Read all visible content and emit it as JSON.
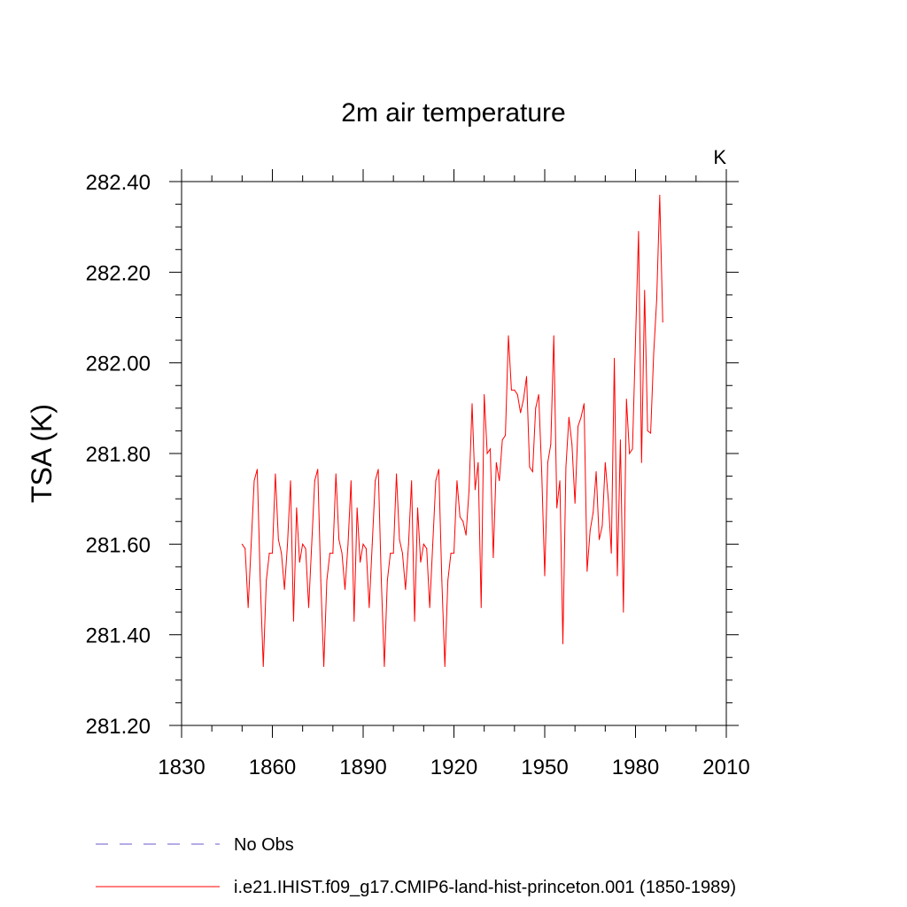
{
  "chart_data": {
    "type": "line",
    "title": "2m air temperature",
    "units": "K",
    "ylabel": "TSA  (K)",
    "xlabel": "",
    "xlim": [
      1830,
      2010
    ],
    "ylim": [
      281.2,
      282.4
    ],
    "x_ticks": [
      "1830",
      "1860",
      "1890",
      "1920",
      "1950",
      "1980",
      "2010"
    ],
    "y_ticks": [
      "281.20",
      "281.40",
      "281.60",
      "281.80",
      "282.00",
      "282.20",
      "282.40"
    ],
    "grid": false,
    "legend_position": "bottom",
    "legend": [
      {
        "label": "No Obs",
        "color": "#6a5acd",
        "style": "dashed"
      },
      {
        "label": "i.e21.IHIST.f09_g17.CMIP6-land-hist-princeton.001 (1850-1989)",
        "color": "#ff0000",
        "style": "solid"
      }
    ],
    "series": [
      {
        "color": "#ff0000",
        "x_start": 1850,
        "x_step": 1,
        "values": [
          281.6,
          281.59,
          281.46,
          281.6,
          281.74,
          281.765,
          281.52,
          281.33,
          281.52,
          281.58,
          281.58,
          281.755,
          281.61,
          281.58,
          281.5,
          281.6,
          281.74,
          281.43,
          281.68,
          281.56,
          281.6,
          281.59,
          281.46,
          281.6,
          281.74,
          281.765,
          281.52,
          281.33,
          281.52,
          281.58,
          281.58,
          281.755,
          281.61,
          281.58,
          281.5,
          281.6,
          281.74,
          281.43,
          281.68,
          281.56,
          281.6,
          281.59,
          281.46,
          281.6,
          281.74,
          281.765,
          281.52,
          281.33,
          281.52,
          281.58,
          281.58,
          281.755,
          281.61,
          281.58,
          281.5,
          281.6,
          281.74,
          281.43,
          281.68,
          281.56,
          281.6,
          281.59,
          281.46,
          281.6,
          281.74,
          281.765,
          281.52,
          281.33,
          281.52,
          281.58,
          281.58,
          281.74,
          281.66,
          281.65,
          281.62,
          281.72,
          281.91,
          281.72,
          281.78,
          281.46,
          281.93,
          281.8,
          281.81,
          281.57,
          281.78,
          281.74,
          281.83,
          281.84,
          282.06,
          281.94,
          281.94,
          281.93,
          281.89,
          281.92,
          281.97,
          281.77,
          281.76,
          281.9,
          281.93,
          281.76,
          281.53,
          281.78,
          281.82,
          282.06,
          281.68,
          281.74,
          281.38,
          281.77,
          281.88,
          281.82,
          281.69,
          281.86,
          281.88,
          281.91,
          281.54,
          281.63,
          281.67,
          281.76,
          281.61,
          281.64,
          281.78,
          281.7,
          281.58,
          282.01,
          281.53,
          281.83,
          281.45,
          281.92,
          281.8,
          281.81,
          282.05,
          282.29,
          281.78,
          282.16,
          281.85,
          281.845,
          282.02,
          282.14,
          282.37,
          282.09
        ]
      }
    ]
  }
}
